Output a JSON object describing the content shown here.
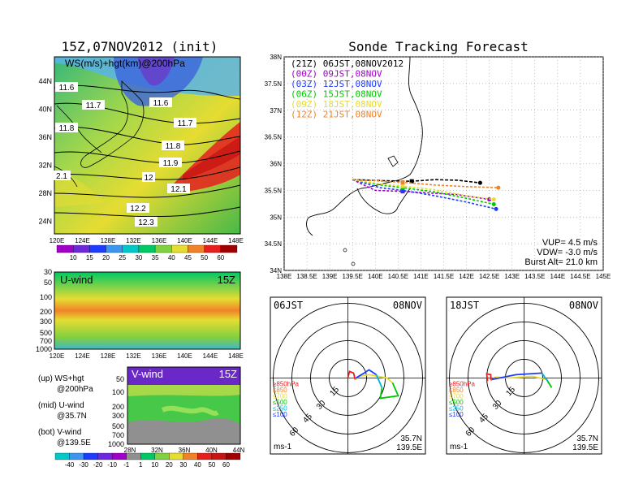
{
  "left_title": "15Z,07NOV2012 (init)",
  "right_title": "Sonde Tracking Forecast",
  "ws_panel": {
    "label": "WS(m/s)+hgt(km)@200hPa",
    "xticks": [
      "120E",
      "124E",
      "128E",
      "132E",
      "136E",
      "140E",
      "144E",
      "148E"
    ],
    "yticks": [
      "44N",
      "40N",
      "36N",
      "32N",
      "28N",
      "24N"
    ],
    "contour_labels": [
      "11.6",
      "11.6",
      "11.7",
      "11.7",
      "11.8",
      "11.8",
      "11.9",
      "12",
      "12.1",
      "12.2",
      "12.3",
      "2.1"
    ],
    "colorbar": [
      "10",
      "15",
      "20",
      "25",
      "30",
      "35",
      "40",
      "45",
      "50",
      "60"
    ]
  },
  "u_panel": {
    "label": "U-wind",
    "time": "15Z",
    "yticks": [
      "30",
      "50",
      "100",
      "200",
      "300",
      "500",
      "700",
      "1000"
    ],
    "xticks": [
      "120E",
      "124E",
      "128E",
      "132E",
      "136E",
      "140E",
      "144E",
      "148E"
    ]
  },
  "v_panel": {
    "label": "V-wind",
    "time": "15Z",
    "yticks": [
      "50",
      "100",
      "200",
      "300",
      "500",
      "700",
      "1000"
    ],
    "xticks": [
      "28N",
      "32N",
      "36N",
      "40N",
      "44N"
    ],
    "colorbar": [
      "-40",
      "-30",
      "-20",
      "-10",
      "-1",
      "1",
      "10",
      "20",
      "30",
      "40",
      "50",
      "60"
    ]
  },
  "notes": {
    "up1": "(up) WS+hgt",
    "up2": "@200hPa",
    "mid1": "(mid) U-wind",
    "mid2": "@35.7N",
    "bot1": "(bot) V-wind",
    "bot2": "@139.5E"
  },
  "track": {
    "xticks": [
      "138E",
      "138.5E",
      "139E",
      "139.5E",
      "140E",
      "140.5E",
      "141E",
      "141.5E",
      "142E",
      "142.5E",
      "143E",
      "143.5E",
      "144E",
      "144.5E",
      "145E"
    ],
    "yticks": [
      "38N",
      "37.5N",
      "37N",
      "36.5N",
      "36N",
      "35.5N",
      "35N",
      "34.5N",
      "34N"
    ],
    "legend": [
      {
        "label": "(21Z) 06JST,08NOV2012",
        "color": "#000000"
      },
      {
        "label": "(00Z) 09JST,08NOV",
        "color": "#a000c8"
      },
      {
        "label": "(03Z) 12JST,08NOV",
        "color": "#1e3cff"
      },
      {
        "label": "(06Z) 15JST,08NOV",
        "color": "#00c800"
      },
      {
        "label": "(09Z) 18JST,08NOV",
        "color": "#e6dc32"
      },
      {
        "label": "(12Z) 21JST,08NOV",
        "color": "#f08228"
      }
    ],
    "params": {
      "vup": "VUP= 4.5 m/s",
      "vdw": "VDW= -3.0 m/s",
      "burst": "Burst Alt= 21.0 km"
    }
  },
  "chart_data": [
    {
      "type": "line",
      "title": "Sonde Tracking Forecast",
      "xlim": [
        138,
        145
      ],
      "ylim": [
        34,
        38
      ],
      "series": [
        {
          "name": "(21Z) 06JST,08NOV2012",
          "color": "#000000",
          "x": [
            139.5,
            140.2,
            140.8,
            141.3,
            141.8,
            142.3
          ],
          "y": [
            35.7,
            35.68,
            35.67,
            35.7,
            35.69,
            35.64
          ],
          "dashed_x": [
            140.8,
            141.3,
            141.8,
            142.3
          ]
        },
        {
          "name": "(00Z) 09JST,08NOV",
          "color": "#a000c8",
          "x": [
            139.5,
            140.0,
            140.6,
            141.2,
            141.8,
            142.5
          ],
          "y": [
            35.7,
            35.5,
            35.48,
            35.45,
            35.42,
            35.33
          ]
        },
        {
          "name": "(03Z) 12JST,08NOV",
          "color": "#1e3cff",
          "x": [
            139.5,
            140.1,
            140.6,
            141.3,
            142.0,
            142.65
          ],
          "y": [
            35.7,
            35.55,
            35.5,
            35.4,
            35.28,
            35.15
          ]
        },
        {
          "name": "(06Z) 15JST,08NOV",
          "color": "#00c800",
          "x": [
            139.5,
            140.1,
            140.6,
            141.3,
            142.0,
            142.6
          ],
          "y": [
            35.7,
            35.6,
            35.55,
            35.47,
            35.35,
            35.24
          ]
        },
        {
          "name": "(09Z) 18JST,08NOV",
          "color": "#e6dc32",
          "x": [
            139.5,
            140.1,
            140.6,
            141.3,
            142.0,
            142.6
          ],
          "y": [
            35.7,
            35.62,
            35.58,
            35.51,
            35.4,
            35.33
          ]
        },
        {
          "name": "(12Z) 21JST,08NOV",
          "color": "#f08228",
          "x": [
            139.5,
            140.0,
            140.6,
            141.3,
            142.0,
            142.7
          ],
          "y": [
            35.7,
            35.68,
            35.65,
            35.6,
            35.57,
            35.55
          ]
        }
      ]
    },
    {
      "type": "scatter",
      "title": "06JST 08NOV",
      "rings": [
        "15",
        "30",
        "45",
        "60"
      ],
      "levels": [
        "≥850hPa",
        "≤850",
        "≤700",
        "≤500",
        "≤250",
        "≤100"
      ],
      "units": "ms-1",
      "location": [
        "35.7N",
        "139.5E"
      ]
    },
    {
      "type": "scatter",
      "title": "18JST 08NOV",
      "rings": [
        "15",
        "30",
        "45",
        "60"
      ],
      "levels": [
        "≥850hPa",
        "≤850",
        "≤700",
        "≤500",
        "≤250",
        "≤100"
      ],
      "units": "ms-1",
      "location": [
        "35.7N",
        "139.5E"
      ]
    }
  ],
  "hodo_left": {
    "time": "06JST",
    "date": "08NOV",
    "units": "ms-1",
    "lat": "35.7N",
    "lon": "139.5E",
    "rings": [
      "15",
      "30",
      "45",
      "60"
    ],
    "levels": [
      {
        "t": "≥850hPa",
        "c": "#e61e1e"
      },
      {
        "t": "≤850",
        "c": "#f08228"
      },
      {
        "t": "≤700",
        "c": "#e6dc32"
      },
      {
        "t": "≤500",
        "c": "#00c800"
      },
      {
        "t": "≤250",
        "c": "#00b4dc"
      },
      {
        "t": "≤100",
        "c": "#1e3cff"
      }
    ]
  },
  "hodo_right": {
    "time": "18JST",
    "date": "08NOV",
    "units": "ms-1",
    "lat": "35.7N",
    "lon": "139.5E",
    "rings": [
      "15",
      "30",
      "45",
      "60"
    ],
    "levels": [
      {
        "t": "≥850hPa",
        "c": "#e61e1e"
      },
      {
        "t": "≤850",
        "c": "#f08228"
      },
      {
        "t": "≤700",
        "c": "#e6dc32"
      },
      {
        "t": "≤500",
        "c": "#00c800"
      },
      {
        "t": "≤250",
        "c": "#00b4dc"
      },
      {
        "t": "≤100",
        "c": "#1e3cff"
      }
    ]
  }
}
